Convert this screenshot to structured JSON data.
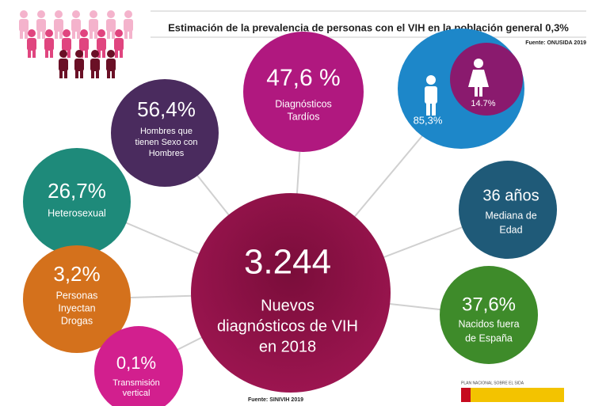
{
  "header": {
    "title": "Estimación de la prevalencia de personas con el VIH en la población general 0,3%",
    "source": "Fuente: ONUSIDA 2019"
  },
  "center": {
    "value": "3.244",
    "lines": [
      "Nuevos",
      "diagnósticos de VIH",
      "en 2018"
    ]
  },
  "bubbles": [
    {
      "value": "47,6 %",
      "lines": [
        "Diagnósticos",
        "Tardíos"
      ]
    },
    {
      "value": "56,4%",
      "lines": [
        "Hombres que",
        "tienen Sexo con",
        "Hombres"
      ]
    },
    {
      "value": "26,7%",
      "lines": [
        "Heterosexual"
      ]
    },
    {
      "value": "3,2%",
      "lines": [
        "Personas",
        "Inyectan",
        "Drogas"
      ]
    },
    {
      "value": "0,1%",
      "lines": [
        "Transmisión",
        "vertical"
      ]
    },
    {
      "value": "36 años",
      "lines": [
        "Mediana de",
        "Edad"
      ]
    },
    {
      "value": "37,6%",
      "lines": [
        "Nacidos fuera",
        "de España"
      ]
    }
  ],
  "gender": {
    "men": "85,3%",
    "women": "14.7%"
  },
  "footer": {
    "source": "Fuente: SINIVIH 2019",
    "logo": "PLAN NACIONAL SOBRE EL SIDA"
  }
}
